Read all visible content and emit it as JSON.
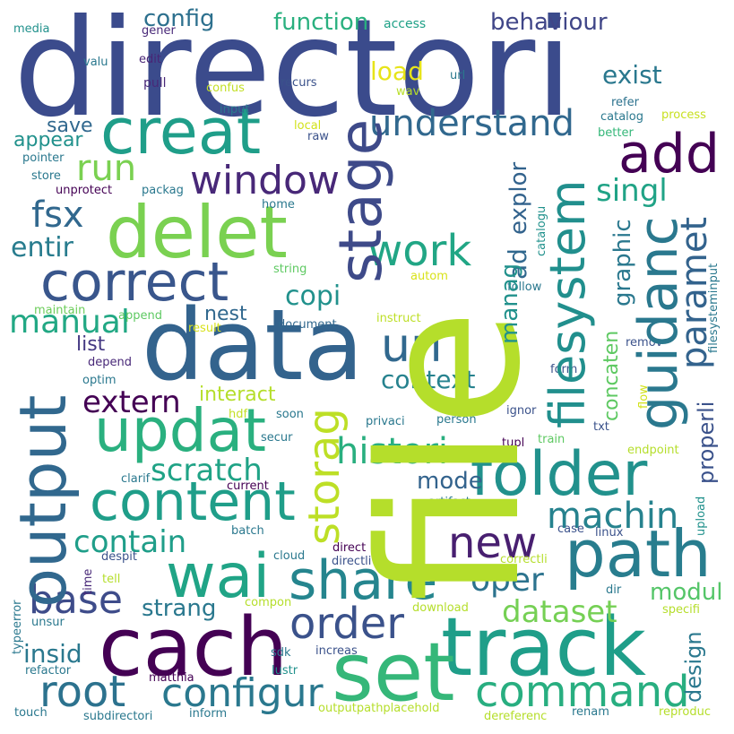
{
  "background_color": "#ffffff",
  "words": {
    "directori": {
      "text": "directori",
      "color": "#3b4b8c"
    },
    "file": {
      "text": "file",
      "color": "#b5de2b"
    },
    "data": {
      "text": "data",
      "color": "#33638d"
    },
    "track": {
      "text": "track",
      "color": "#1f9e89"
    },
    "cach": {
      "text": "cach",
      "color": "#440154"
    },
    "output": {
      "text": "output",
      "color": "#31688e"
    },
    "set": {
      "text": "set",
      "color": "#35b779"
    },
    "delet": {
      "text": "delet",
      "color": "#7ad151"
    },
    "creat": {
      "text": "creat",
      "color": "#1f9e89"
    },
    "path": {
      "text": "path",
      "color": "#287d8e"
    },
    "folder": {
      "text": "folder",
      "color": "#21918c"
    },
    "wai": {
      "text": "wai",
      "color": "#20a486"
    },
    "updat": {
      "text": "updat",
      "color": "#2ab07f"
    },
    "content": {
      "text": "content",
      "color": "#1f9e89"
    },
    "correct": {
      "text": "correct",
      "color": "#39568c"
    },
    "stage": {
      "text": "stage",
      "color": "#3e4a89"
    },
    "share": {
      "text": "share",
      "color": "#25858e"
    },
    "guidanc": {
      "text": "guidanc",
      "color": "#2a788e"
    },
    "filesystem": {
      "text": "filesystem",
      "color": "#218f8d"
    },
    "command": {
      "text": "command",
      "color": "#28ae80"
    },
    "add": {
      "text": "add",
      "color": "#440154"
    },
    "uri": {
      "text": "uri",
      "color": "#31688e"
    },
    "work": {
      "text": "work",
      "color": "#21a685"
    },
    "order": {
      "text": "order",
      "color": "#3b528b"
    },
    "root": {
      "text": "root",
      "color": "#2c728e"
    },
    "configur": {
      "text": "configur",
      "color": "#2a788e"
    },
    "new": {
      "text": "new",
      "color": "#481f70"
    },
    "window": {
      "text": "window",
      "color": "#482878"
    },
    "storag": {
      "text": "storag",
      "color": "#bddf26"
    },
    "base": {
      "text": "base",
      "color": "#3e4c8a"
    },
    "understand": {
      "text": "understand",
      "color": "#31688e"
    },
    "histori": {
      "text": "histori",
      "color": "#29af7f"
    },
    "machin": {
      "text": "machin",
      "color": "#26828e"
    },
    "paramet": {
      "text": "paramet",
      "color": "#33638d"
    },
    "run": {
      "text": "run",
      "color": "#7ad151"
    },
    "fsx": {
      "text": "fsx",
      "color": "#31688e"
    },
    "manual": {
      "text": "manual",
      "color": "#22a884"
    },
    "oper": {
      "text": "oper",
      "color": "#2c738e"
    },
    "contain": {
      "text": "contain",
      "color": "#1f9e89"
    },
    "scratch": {
      "text": "scratch",
      "color": "#20a386"
    },
    "extern": {
      "text": "extern",
      "color": "#440154"
    },
    "dataset": {
      "text": "dataset",
      "color": "#75d054"
    },
    "copi": {
      "text": "copi",
      "color": "#21918c"
    },
    "singl": {
      "text": "singl",
      "color": "#20a386"
    },
    "entir": {
      "text": "entir",
      "color": "#287c8e"
    },
    "context": {
      "text": "context",
      "color": "#26828e"
    },
    "modul": {
      "text": "modul",
      "color": "#54c568"
    },
    "mode": {
      "text": "mode",
      "color": "#33638d"
    },
    "strang": {
      "text": "strang",
      "color": "#2a788e"
    },
    "insid": {
      "text": "insid",
      "color": "#2a788e"
    },
    "exist": {
      "text": "exist",
      "color": "#2a788e"
    },
    "load": {
      "text": "load",
      "color": "#e7e419"
    },
    "function": {
      "text": "function",
      "color": "#2ab07f"
    },
    "config": {
      "text": "config",
      "color": "#2d708e"
    },
    "behaviour": {
      "text": "behaviour",
      "color": "#404688"
    },
    "save": {
      "text": "save",
      "color": "#31688e"
    },
    "appear": {
      "text": "appear",
      "color": "#21918c"
    },
    "nest": {
      "text": "nest",
      "color": "#31688e"
    },
    "list": {
      "text": "list",
      "color": "#443983"
    },
    "interact": {
      "text": "interact",
      "color": "#b5de2b"
    },
    "explor": {
      "text": "explor",
      "color": "#33638d"
    },
    "ad": {
      "text": "ad",
      "color": "#31688e"
    },
    "manag": {
      "text": "manag",
      "color": "#21918c"
    },
    "graphic": {
      "text": "graphic",
      "color": "#2a788e"
    },
    "concaten": {
      "text": "concaten",
      "color": "#5ec962"
    },
    "properli": {
      "text": "properli",
      "color": "#3b528b"
    },
    "design": {
      "text": "design",
      "color": "#2a788e"
    },
    "media": {
      "text": "media",
      "color": "#21918c"
    },
    "gener": {
      "text": "gener",
      "color": "#482878"
    },
    "access": {
      "text": "access",
      "color": "#1fa187"
    },
    "valu": {
      "text": "valu",
      "color": "#2a788e"
    },
    "edit": {
      "text": "edit",
      "color": "#482475"
    },
    "url": {
      "text": "url",
      "color": "#2a788e"
    },
    "pull": {
      "text": "pull",
      "color": "#482878"
    },
    "confus": {
      "text": "confus",
      "color": "#c2df23"
    },
    "recurs": {
      "text": "recurs",
      "color": "#3b528b"
    },
    "wav": {
      "text": "wav",
      "color": "#b8de29"
    },
    "refer": {
      "text": "refer",
      "color": "#2c728e"
    },
    "input": {
      "text": "input",
      "color": "#2a788e"
    },
    "catalog": {
      "text": "catalog",
      "color": "#2a788e"
    },
    "process": {
      "text": "process",
      "color": "#c8e020"
    },
    "local": {
      "text": "local",
      "color": "#d2e21b"
    },
    "raw": {
      "text": "raw",
      "color": "#3b528b"
    },
    "better": {
      "text": "better",
      "color": "#35b779"
    },
    "catalogu": {
      "text": "catalogu",
      "color": "#21918c"
    },
    "pointer": {
      "text": "pointer",
      "color": "#2a788e"
    },
    "store": {
      "text": "store",
      "color": "#2a788e"
    },
    "unprotect": {
      "text": "unprotect",
      "color": "#440154"
    },
    "packag": {
      "text": "packag",
      "color": "#2a788e"
    },
    "home": {
      "text": "home",
      "color": "#2a788e"
    },
    "filesysteminput": {
      "text": "filesysteminput",
      "color": "#2a788e"
    },
    "string": {
      "text": "string",
      "color": "#5ec962"
    },
    "autom": {
      "text": "autom",
      "color": "#d8e219"
    },
    "follow": {
      "text": "follow",
      "color": "#2a788e"
    },
    "maintain": {
      "text": "maintain",
      "color": "#6ccd5a"
    },
    "append": {
      "text": "append",
      "color": "#5ec962"
    },
    "result": {
      "text": "result",
      "color": "#d8e219"
    },
    "document": {
      "text": "document",
      "color": "#31688e"
    },
    "instruct": {
      "text": "instruct",
      "color": "#bddf26"
    },
    "remov": {
      "text": "remov",
      "color": "#3b528b"
    },
    "depend": {
      "text": "depend",
      "color": "#482878"
    },
    "optim": {
      "text": "optim",
      "color": "#2a788e"
    },
    "form": {
      "text": "form",
      "color": "#3b528b"
    },
    "flow": {
      "text": "flow",
      "color": "#d2e21b"
    },
    "hdf": {
      "text": "hdf",
      "color": "#c2df23"
    },
    "soon": {
      "text": "soon",
      "color": "#2a788e"
    },
    "privaci": {
      "text": "privaci",
      "color": "#2a788e"
    },
    "person": {
      "text": "person",
      "color": "#2a788e"
    },
    "ignor": {
      "text": "ignor",
      "color": "#3b528b"
    },
    "txt": {
      "text": "txt",
      "color": "#3b528b"
    },
    "secur": {
      "text": "secur",
      "color": "#2a788e"
    },
    "tupl": {
      "text": "tupl",
      "color": "#440154"
    },
    "train": {
      "text": "train",
      "color": "#5ec962"
    },
    "endpoint": {
      "text": "endpoint",
      "color": "#b5de2b"
    },
    "clarif": {
      "text": "clarif",
      "color": "#2a788e"
    },
    "current": {
      "text": "current",
      "color": "#440154"
    },
    "artifact": {
      "text": "artifact",
      "color": "#2a788e"
    },
    "upload": {
      "text": "upload",
      "color": "#21918c"
    },
    "case": {
      "text": "case",
      "color": "#3b528b"
    },
    "linux": {
      "text": "linux",
      "color": "#3b528b"
    },
    "batch": {
      "text": "batch",
      "color": "#2a788e"
    },
    "cloud": {
      "text": "cloud",
      "color": "#2a788e"
    },
    "direct": {
      "text": "direct",
      "color": "#440154"
    },
    "directli": {
      "text": "directli",
      "color": "#3b528b"
    },
    "despit": {
      "text": "despit",
      "color": "#3b528b"
    },
    "time": {
      "text": "time",
      "color": "#482878"
    },
    "correctli": {
      "text": "correctli",
      "color": "#b5de2b"
    },
    "dir": {
      "text": "dir",
      "color": "#2a788e"
    },
    "tell": {
      "text": "tell",
      "color": "#b5de2b"
    },
    "compon": {
      "text": "compon",
      "color": "#b5de2b"
    },
    "typeerror": {
      "text": "typeerror",
      "color": "#2a788e"
    },
    "unsur": {
      "text": "unsur",
      "color": "#2a788e"
    },
    "download": {
      "text": "download",
      "color": "#b5de2b"
    },
    "specifi": {
      "text": "specifi",
      "color": "#b5de2b"
    },
    "sdk": {
      "text": "sdk",
      "color": "#2a788e"
    },
    "increas": {
      "text": "increas",
      "color": "#3b528b"
    },
    "refactor": {
      "text": "refactor",
      "color": "#2a788e"
    },
    "matthia": {
      "text": "matthia",
      "color": "#440154"
    },
    "lustr": {
      "text": "lustr",
      "color": "#21918c"
    },
    "touch": {
      "text": "touch",
      "color": "#2a788e"
    },
    "subdirectori": {
      "text": "subdirectori",
      "color": "#2a788e"
    },
    "inform": {
      "text": "inform",
      "color": "#2a788e"
    },
    "outputpathplacehold": {
      "text": "outputpathplacehold",
      "color": "#b5de2b"
    },
    "dereferenc": {
      "text": "dereferenc",
      "color": "#b5de2b"
    },
    "renam": {
      "text": "renam",
      "color": "#2a788e"
    },
    "reproduc": {
      "text": "reproduc",
      "color": "#b5de2b"
    }
  }
}
